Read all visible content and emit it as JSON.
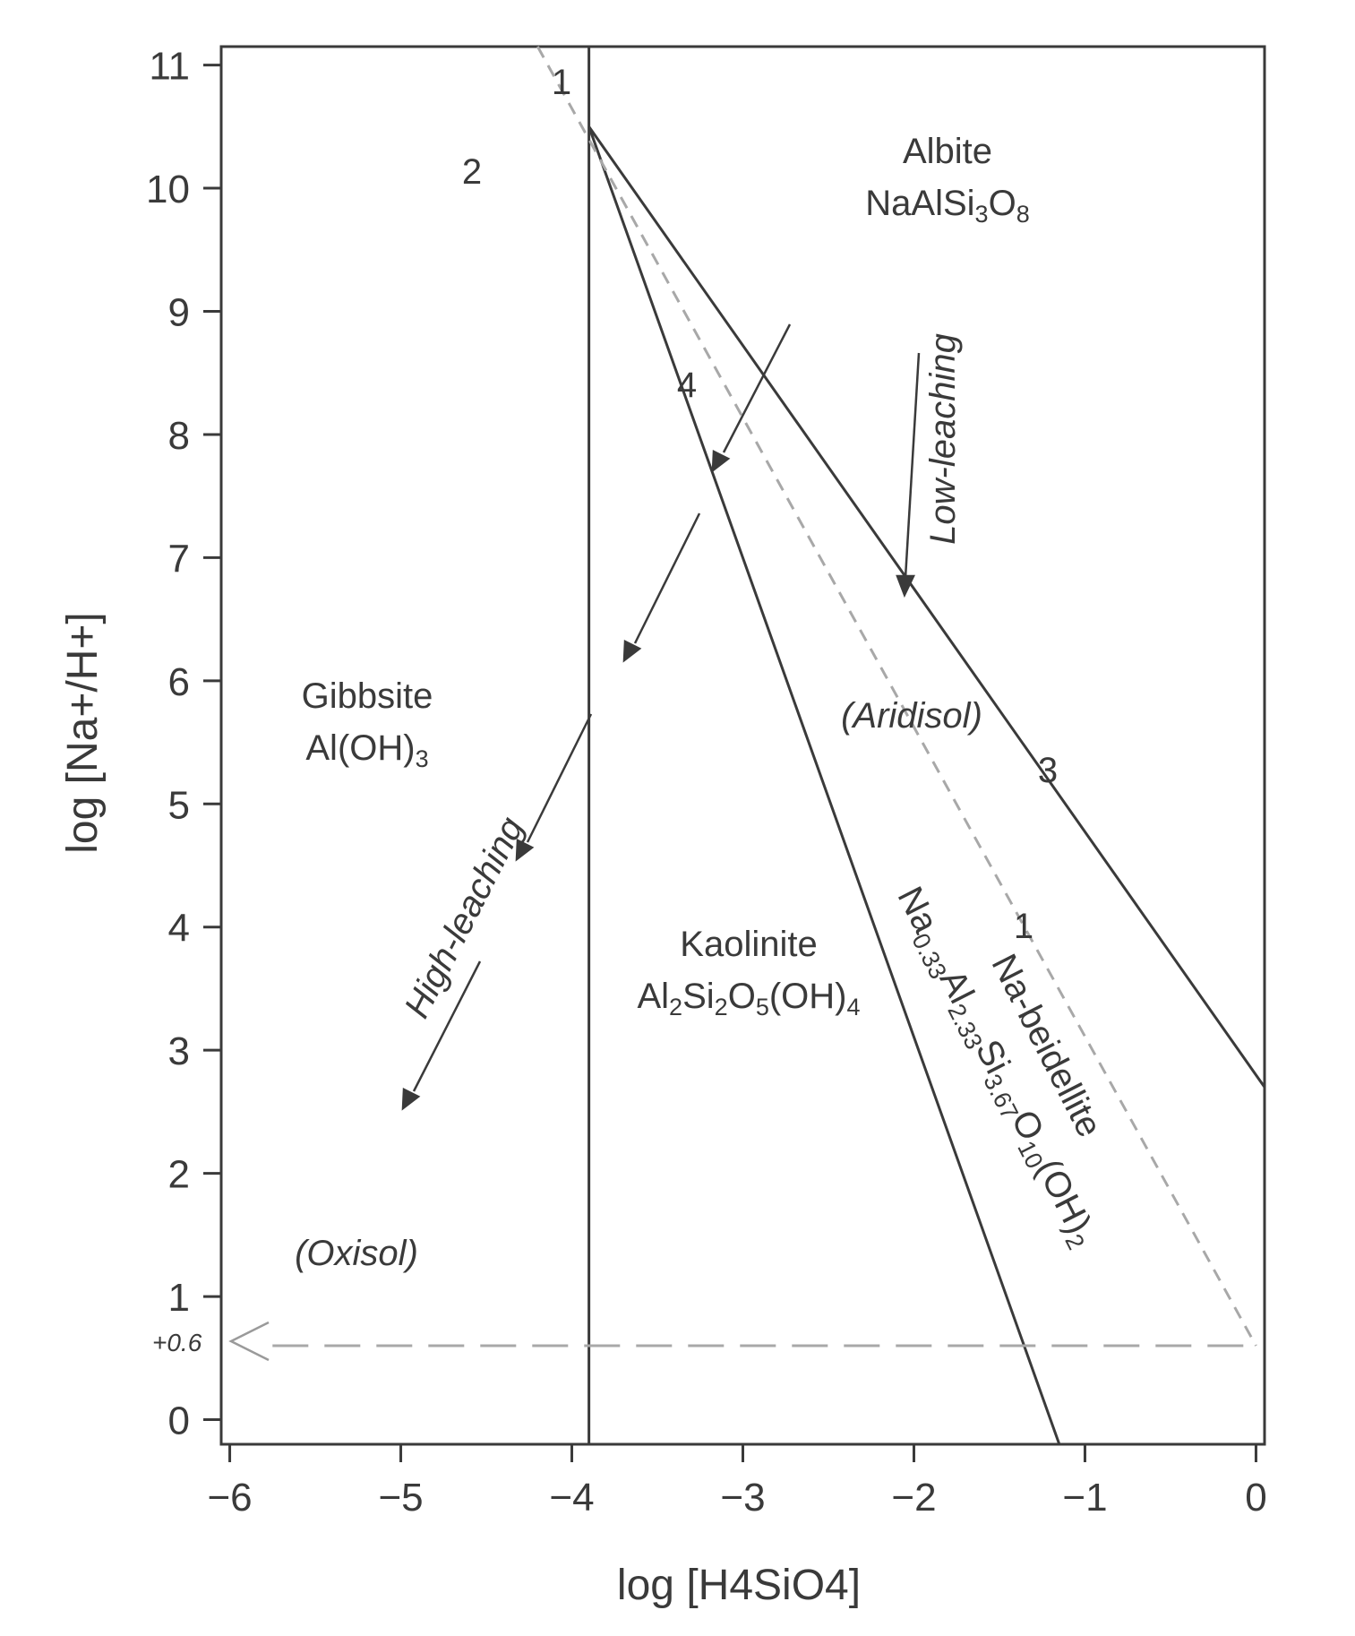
{
  "chart_data": {
    "type": "line",
    "title": "",
    "xlabel": "log [H4SiO4]",
    "ylabel": "log [Na+/H+]",
    "xlim": [
      -6.05,
      0.05
    ],
    "ylim": [
      -0.2,
      11.15
    ],
    "x_ticks": [
      -6,
      -5,
      -4,
      -3,
      -2,
      -1,
      0
    ],
    "y_ticks": [
      0,
      1,
      2,
      3,
      4,
      5,
      6,
      7,
      8,
      9,
      10,
      11
    ],
    "x_tick_labels": [
      "−6",
      "−5",
      "−4",
      "−3",
      "−2",
      "−1",
      "0"
    ],
    "y_tick_labels": [
      "0",
      "1",
      "2",
      "3",
      "4",
      "5",
      "6",
      "7",
      "8",
      "9",
      "10",
      "11"
    ],
    "grid": false,
    "series": [
      {
        "style": "solid",
        "x": [
          -3.9,
          -3.9
        ],
        "y": [
          -0.2,
          11.15
        ]
      },
      {
        "style": "solid",
        "x": [
          -3.9,
          0.05
        ],
        "y": [
          10.5,
          2.7
        ]
      },
      {
        "style": "solid",
        "x": [
          -3.9,
          -1.15
        ],
        "y": [
          10.5,
          -0.2
        ]
      },
      {
        "style": "dashed-grey",
        "x": [
          -4.2,
          0.0
        ],
        "y": [
          11.15,
          0.6
        ]
      },
      {
        "style": "dashed-grey",
        "x": [
          -5.75,
          0.0
        ],
        "y": [
          0.6,
          0.6
        ]
      }
    ],
    "annotations": {
      "albite": {
        "name": "Albite",
        "formula": "NaAlSi",
        "sub1": "3",
        "mid": "O",
        "sub2": "8"
      },
      "gibbsite": {
        "name": "Gibbsite",
        "formula": "Al(OH)",
        "sub1": "3"
      },
      "kaolinite": {
        "name": "Kaolinite",
        "p1": "Al",
        "s1": "2",
        "p2": "Si",
        "s2": "2",
        "p3": "O",
        "s3": "5",
        "p4": "(OH)",
        "s4": "4"
      },
      "beidellite": {
        "name": "Na-beidellite",
        "p1": "Na",
        "s1": "0.33",
        "p2": "Al",
        "s2": "2.33",
        "p3": "Si",
        "s3": "3.67",
        "p4": "O",
        "s4": "10",
        "p5": "(OH)",
        "s5": "2"
      },
      "aridisol": "(Aridisol)",
      "oxisol": "(Oxisol)",
      "low_leaching": "Low-leaching",
      "high_leaching": "High-leaching",
      "marker_1_top": "1",
      "marker_1_mid": "1",
      "marker_2": "2",
      "marker_3": "3",
      "marker_4": "4",
      "marker_06": "+0.6"
    }
  }
}
